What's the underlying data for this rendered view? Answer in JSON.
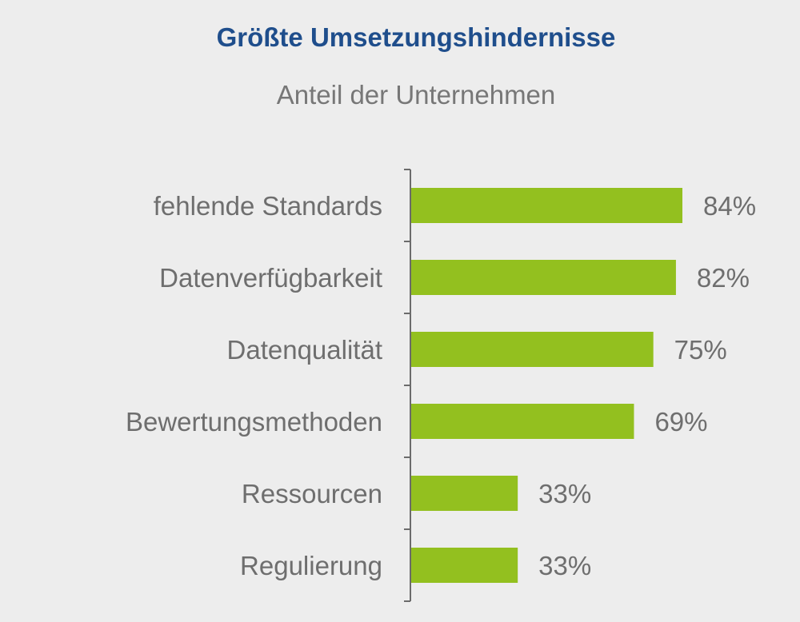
{
  "chart_data": {
    "type": "bar",
    "orientation": "horizontal",
    "title": "Größte Umsetzungshindernisse",
    "subtitle": "Anteil der Unternehmen",
    "categories": [
      "fehlende Standards",
      "Datenverfügbarkeit",
      "Datenqualität",
      "Bewertungsmethoden",
      "Ressourcen",
      "Regulierung"
    ],
    "values": [
      84,
      82,
      75,
      69,
      33,
      33
    ],
    "value_labels": [
      "84%",
      "82%",
      "75%",
      "69%",
      "33%",
      "33%"
    ],
    "unit": "%",
    "xlim": [
      0,
      100
    ],
    "grid": false,
    "legend": "none",
    "bar_color": "#93c01f",
    "title_color": "#1f4e8c",
    "text_color": "#6e6e6e"
  }
}
